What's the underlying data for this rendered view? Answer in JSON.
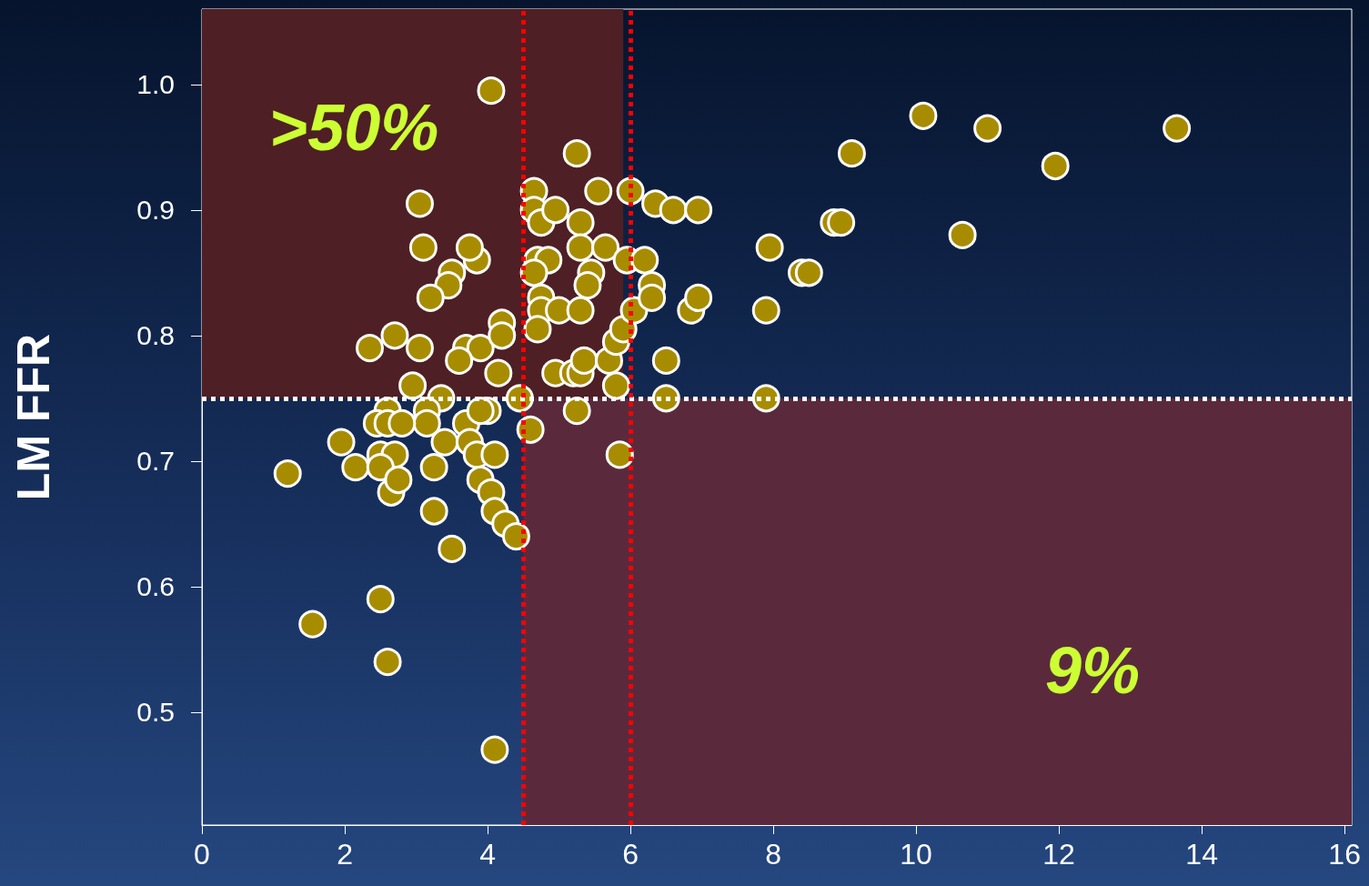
{
  "chart_data": {
    "type": "scatter",
    "ylabel": "LM FFR",
    "x": [
      1.2,
      1.55,
      2.5,
      2.6,
      4.1,
      4.05,
      5.25,
      3.05,
      3.1,
      3.85,
      3.75,
      3.5,
      3.45,
      3.2,
      2.35,
      2.7,
      3.05,
      3.7,
      3.9,
      3.6,
      4.2,
      4.2,
      4.15,
      2.95,
      3.35,
      3.15,
      3.15,
      2.6,
      2.45,
      2.6,
      2.8,
      1.95,
      2.5,
      2.7,
      2.15,
      2.5,
      2.65,
      2.75,
      3.25,
      3.25,
      3.4,
      3.7,
      3.75,
      3.85,
      3.9,
      4.0,
      3.9,
      4.1,
      4.05,
      4.1,
      4.25,
      4.4,
      3.5,
      4.45,
      4.6,
      4.65,
      4.65,
      4.75,
      4.95,
      4.7,
      4.85,
      4.65,
      4.75,
      4.75,
      5.0,
      4.7,
      5.3,
      5.55,
      5.3,
      5.65,
      5.45,
      5.4,
      5.3,
      4.95,
      5.2,
      5.3,
      5.35,
      5.25,
      5.7,
      5.8,
      5.9,
      5.8,
      5.85,
      6.0,
      5.95,
      6.2,
      6.05,
      6.3,
      6.3,
      6.35,
      6.6,
      6.95,
      6.5,
      6.5,
      6.85,
      6.95,
      7.9,
      7.9,
      7.95,
      8.4,
      8.5,
      8.85,
      8.95,
      9.1,
      10.1,
      11.0,
      10.65,
      11.95,
      13.65
    ],
    "values": [
      0.69,
      0.57,
      0.59,
      0.54,
      0.47,
      0.995,
      0.945,
      0.905,
      0.87,
      0.86,
      0.87,
      0.85,
      0.84,
      0.83,
      0.79,
      0.8,
      0.79,
      0.79,
      0.79,
      0.78,
      0.81,
      0.8,
      0.77,
      0.76,
      0.75,
      0.74,
      0.73,
      0.74,
      0.73,
      0.73,
      0.73,
      0.715,
      0.705,
      0.705,
      0.695,
      0.695,
      0.675,
      0.685,
      0.695,
      0.66,
      0.715,
      0.73,
      0.715,
      0.705,
      0.685,
      0.74,
      0.74,
      0.705,
      0.675,
      0.66,
      0.65,
      0.64,
      0.63,
      0.75,
      0.725,
      0.915,
      0.9,
      0.89,
      0.9,
      0.86,
      0.86,
      0.85,
      0.83,
      0.82,
      0.82,
      0.805,
      0.89,
      0.915,
      0.87,
      0.87,
      0.85,
      0.84,
      0.82,
      0.77,
      0.77,
      0.77,
      0.78,
      0.74,
      0.78,
      0.795,
      0.805,
      0.76,
      0.705,
      0.915,
      0.86,
      0.86,
      0.82,
      0.84,
      0.83,
      0.905,
      0.9,
      0.9,
      0.78,
      0.75,
      0.82,
      0.83,
      0.75,
      0.82,
      0.87,
      0.85,
      0.85,
      0.89,
      0.89,
      0.945,
      0.975,
      0.965,
      0.88,
      0.935,
      0.965
    ],
    "color": "#a88c00",
    "marker": "circle",
    "xlim": [
      0,
      16.1
    ],
    "xticks": [
      0,
      2,
      4,
      6,
      8,
      10,
      12,
      14,
      16
    ],
    "ylim": [
      0.41,
      1.06
    ],
    "yticks": [
      0.5,
      0.6,
      0.7,
      0.8,
      0.9,
      {
        "value": 1,
        "label": "1.0"
      }
    ],
    "ref_lines": [
      {
        "axis": "y",
        "value": 0.75,
        "color": "#ffffff",
        "line_style": "dotted"
      },
      {
        "axis": "x",
        "value": 4.5,
        "color": "#ff0000",
        "line_style": "dotted"
      },
      {
        "axis": "x",
        "value": 6,
        "color": "#ff0000",
        "line_style": "dotted"
      }
    ],
    "bands": [
      {
        "axis": "x",
        "from": 0,
        "to": 5.9,
        "label": ">50%",
        "color": "#4e1f24"
      },
      {
        "axis": "x",
        "from": 4.5,
        "to": 16.1,
        "label": "9%",
        "color": "#5a2a3c"
      }
    ]
  }
}
